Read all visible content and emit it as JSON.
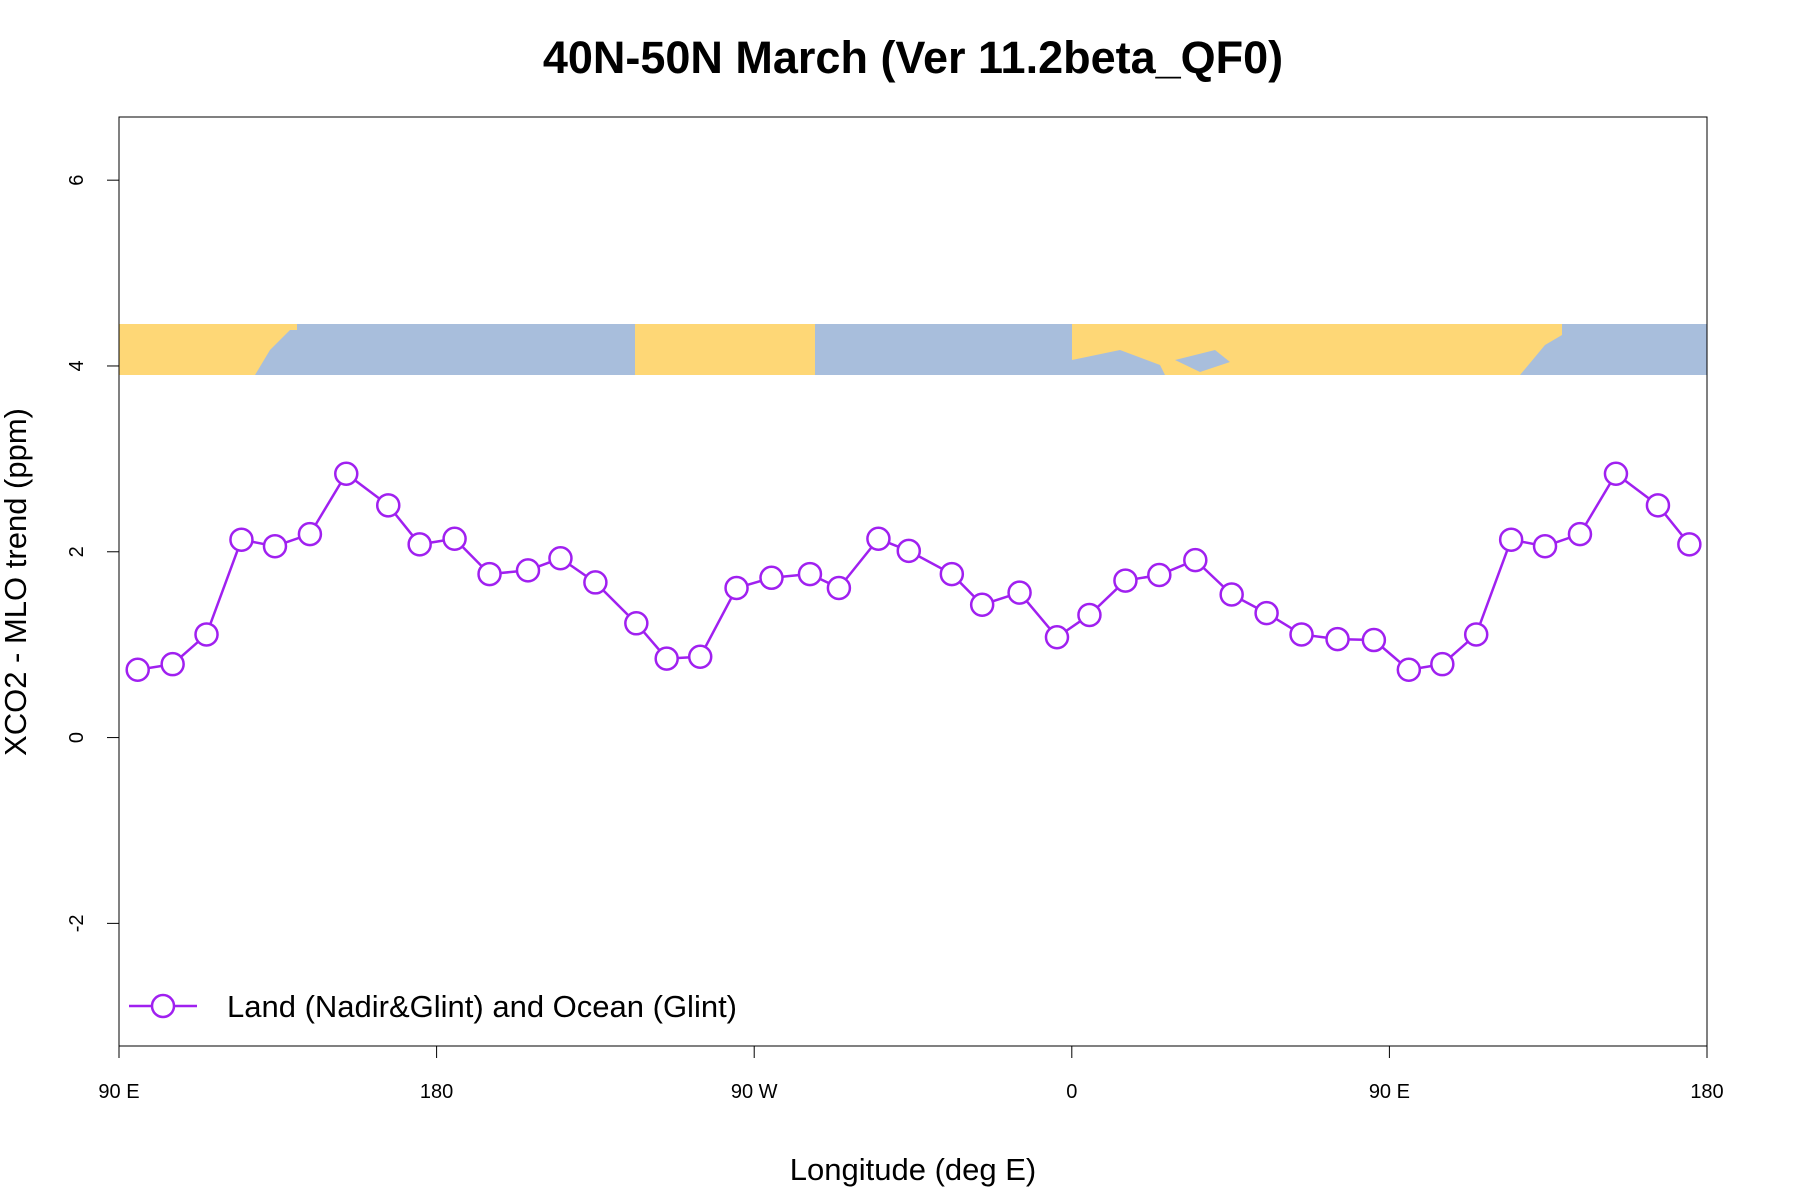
{
  "chart_data": {
    "type": "line",
    "title": "40N-50N March (Ver 11.2beta_QF0)",
    "x_label": "Longitude (deg E)",
    "y_label": "XCO2 - MLO trend (ppm)",
    "xlim": [
      90,
      540
    ],
    "xticks": [
      {
        "value": 90,
        "label": "90 E"
      },
      180,
      {
        "value": 270,
        "label": "90 W"
      },
      {
        "value": 360,
        "label": "0"
      },
      {
        "value": 450,
        "label": "90 E"
      },
      {
        "value": 540,
        "label": "180"
      }
    ],
    "ylim": [
      -3.32,
      6.68
    ],
    "yticks": [
      -2,
      0,
      2,
      4,
      6
    ],
    "legend": "bottom-left",
    "series": [
      {
        "name": "Land (Nadir&Glint) and Ocean (Glint)",
        "color": "#a020f0",
        "x": [
          95.3,
          105.2,
          114.8,
          124.7,
          134.2,
          144.1,
          154.4,
          166.3,
          175.2,
          185.1,
          195.0,
          205.9,
          215.1,
          225.0,
          236.6,
          245.2,
          254.7,
          265.0,
          274.9,
          285.8,
          294.0,
          305.2,
          313.8,
          326.0,
          334.6,
          345.2,
          355.8,
          365.0,
          375.2,
          384.8,
          395.0,
          405.3,
          415.2,
          425.1,
          435.3,
          445.6,
          455.5,
          465.0,
          474.6,
          484.5,
          494.1,
          504.0,
          514.2,
          526.1,
          535.0
        ],
        "values": [
          0.73,
          0.79,
          1.11,
          2.13,
          2.06,
          2.19,
          2.84,
          2.5,
          2.08,
          2.14,
          1.76,
          1.8,
          1.93,
          1.67,
          1.23,
          0.85,
          0.87,
          1.61,
          1.72,
          1.76,
          1.61,
          2.14,
          2.01,
          1.76,
          1.43,
          1.56,
          1.08,
          1.32,
          1.69,
          1.75,
          1.91,
          1.54,
          1.34,
          1.11,
          1.06,
          1.05,
          0.73,
          0.79,
          1.11,
          2.13,
          2.06,
          2.19,
          2.84,
          2.5,
          2.08
        ]
      }
    ]
  }
}
